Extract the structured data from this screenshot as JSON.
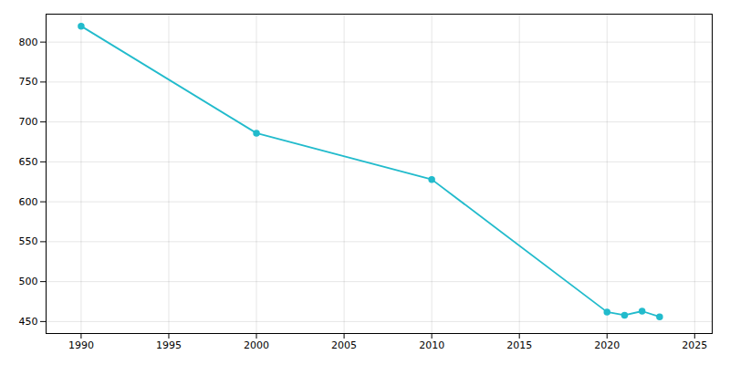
{
  "chart_data": {
    "type": "line",
    "x": [
      1990,
      2000,
      2010,
      2020,
      2021,
      2022,
      2023
    ],
    "values": [
      820,
      686,
      628,
      462,
      458,
      463,
      456
    ],
    "color": "#22BBCC",
    "marker": "circle",
    "xlim": [
      1988,
      2026
    ],
    "ylim": [
      435,
      835
    ],
    "xticks": [
      1990,
      1995,
      2000,
      2005,
      2010,
      2015,
      2020,
      2025
    ],
    "yticks": [
      450,
      500,
      550,
      600,
      650,
      700,
      750,
      800
    ],
    "grid": true
  }
}
